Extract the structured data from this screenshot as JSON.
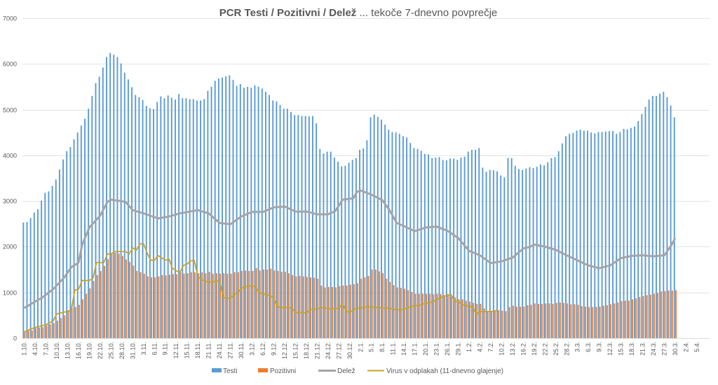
{
  "chart_data": {
    "type": "bar",
    "title": {
      "bold": "PCR Testi / Pozitivni / Delež",
      "rest": " ... tekoče 7-dnevno povprečje"
    },
    "xlabel": "",
    "ylabel": "",
    "ylim": [
      0,
      7000
    ],
    "yticks": [
      "0",
      "1000",
      "2000",
      "3000",
      "4000",
      "5000",
      "6000",
      "7000"
    ],
    "secondary_ylim": [
      0,
      70
    ],
    "secondary_axis_visible": false,
    "grid": true,
    "legend_position": "bottom",
    "start_date": "1.10.",
    "category_count": 190,
    "x_tick_labels": [
      "1.10.",
      "4.10.",
      "7.10.",
      "10.10.",
      "13.10.",
      "16.10.",
      "19.10.",
      "22.10.",
      "25.10.",
      "28.10.",
      "31.10.",
      "3.11.",
      "6.11.",
      "9.11.",
      "12.11.",
      "15.11.",
      "18.11.",
      "21.11.",
      "24.11.",
      "27.11.",
      "30.11.",
      "3.12.",
      "6.12.",
      "9.12.",
      "12.12.",
      "15.12.",
      "18.12.",
      "21.12.",
      "24.12.",
      "27.12.",
      "30.12.",
      "2.1.",
      "5.1.",
      "8.1.",
      "11.1.",
      "14.1.",
      "17.1.",
      "20.1.",
      "23.1.",
      "26.1.",
      "29.1.",
      "1.2.",
      "4.2.",
      "7.2.",
      "10.2.",
      "13.2.",
      "16.2.",
      "19.2.",
      "22.2.",
      "25.2.",
      "28.2.",
      "3.3.",
      "6.3.",
      "9.3.",
      "12.3.",
      "15.3.",
      "18.3.",
      "21.3.",
      "24.3.",
      "27.3.",
      "30.3.",
      "2.4.",
      "5.4."
    ],
    "series": [
      {
        "name": "Testi",
        "kind": "bar",
        "color": "#5b9bd5",
        "axis": "primary",
        "values": [
          2530,
          2540,
          2630,
          2750,
          2820,
          3010,
          3180,
          3210,
          3330,
          3470,
          3690,
          3910,
          4090,
          4180,
          4350,
          4500,
          4650,
          4800,
          5020,
          5300,
          5580,
          5720,
          5920,
          6150,
          6240,
          6200,
          6150,
          6010,
          5810,
          5660,
          5490,
          5320,
          5270,
          5210,
          5080,
          5030,
          5010,
          5170,
          5290,
          5250,
          5310,
          5260,
          5220,
          5340,
          5250,
          5250,
          5230,
          5230,
          5200,
          5200,
          5230,
          5410,
          5500,
          5630,
          5680,
          5700,
          5730,
          5750,
          5650,
          5520,
          5560,
          5480,
          5500,
          5480,
          5530,
          5500,
          5460,
          5390,
          5320,
          5200,
          5180,
          5100,
          5020,
          5020,
          4950,
          4880,
          4880,
          4860,
          4860,
          4850,
          4860,
          4700,
          4140,
          4040,
          4080,
          4080,
          3950,
          3860,
          3760,
          3770,
          3840,
          3900,
          3940,
          4120,
          4150,
          4330,
          4830,
          4890,
          4840,
          4780,
          4670,
          4560,
          4510,
          4500,
          4470,
          4420,
          4390,
          4270,
          4160,
          4140,
          4100,
          4030,
          4020,
          3940,
          3950,
          3960,
          3900,
          3890,
          3930,
          3930,
          3900,
          3950,
          3970,
          4080,
          4120,
          4120,
          4160,
          3730,
          3640,
          3680,
          3670,
          3650,
          3560,
          3520,
          3940,
          3940,
          3770,
          3700,
          3680,
          3710,
          3740,
          3720,
          3750,
          3800,
          3780,
          3850,
          3940,
          3960,
          4090,
          4260,
          4420,
          4470,
          4490,
          4540,
          4560,
          4540,
          4540,
          4500,
          4480,
          4510,
          4510,
          4520,
          4530,
          4530,
          4470,
          4510,
          4580,
          4570,
          4600,
          4630,
          4750,
          4900,
          5060,
          5220,
          5300,
          5300,
          5350,
          5390,
          5270,
          5090,
          4830
        ]
      },
      {
        "name": "Pozitivni",
        "kind": "bar",
        "color": "#ed7d31",
        "axis": "primary",
        "values": [
          150,
          160,
          170,
          220,
          230,
          240,
          280,
          300,
          330,
          380,
          440,
          500,
          610,
          660,
          680,
          730,
          850,
          970,
          1090,
          1250,
          1380,
          1470,
          1580,
          1730,
          1840,
          1870,
          1850,
          1800,
          1720,
          1670,
          1590,
          1470,
          1440,
          1410,
          1350,
          1330,
          1330,
          1350,
          1380,
          1370,
          1390,
          1400,
          1400,
          1440,
          1410,
          1420,
          1440,
          1440,
          1420,
          1440,
          1420,
          1450,
          1410,
          1420,
          1410,
          1420,
          1410,
          1410,
          1440,
          1440,
          1470,
          1480,
          1470,
          1470,
          1530,
          1480,
          1500,
          1500,
          1520,
          1480,
          1470,
          1450,
          1450,
          1420,
          1380,
          1350,
          1360,
          1350,
          1340,
          1330,
          1320,
          1300,
          1150,
          1110,
          1120,
          1120,
          1110,
          1140,
          1150,
          1150,
          1170,
          1180,
          1200,
          1300,
          1330,
          1360,
          1500,
          1500,
          1460,
          1420,
          1300,
          1230,
          1160,
          1110,
          1100,
          1080,
          1050,
          1010,
          970,
          970,
          970,
          970,
          970,
          960,
          970,
          960,
          940,
          960,
          910,
          890,
          850,
          850,
          820,
          800,
          770,
          750,
          750,
          650,
          580,
          580,
          600,
          610,
          600,
          590,
          680,
          710,
          690,
          690,
          690,
          720,
          730,
          760,
          750,
          750,
          760,
          760,
          750,
          770,
          780,
          770,
          760,
          740,
          740,
          730,
          700,
          690,
          680,
          680,
          680,
          690,
          710,
          720,
          740,
          760,
          780,
          810,
          820,
          820,
          850,
          870,
          900,
          920,
          940,
          950,
          970,
          990,
          1020,
          1030,
          1040,
          1040,
          1050
        ]
      },
      {
        "name": "Delež",
        "kind": "line",
        "color": "#a5a5a5",
        "axis": "secondary",
        "unit": "%",
        "points": [
          [
            "1.10.",
            6.6
          ],
          [
            "6.10.",
            8.9
          ],
          [
            "9.10.",
            10.7
          ],
          [
            "12.10.",
            13.2
          ],
          [
            "14.10.",
            15.5
          ],
          [
            "16.10.",
            16.5
          ],
          [
            "17.10.",
            20.4
          ],
          [
            "19.10.",
            24.2
          ],
          [
            "22.10.",
            26.8
          ],
          [
            "24.10.",
            29.8
          ],
          [
            "25.10.",
            30.3
          ],
          [
            "29.10.",
            29.8
          ],
          [
            "31.10.",
            28.0
          ],
          [
            "3.11.",
            27.3
          ],
          [
            "7.11.",
            26.2
          ],
          [
            "10.11.",
            26.6
          ],
          [
            "13.11.",
            27.3
          ],
          [
            "18.11.",
            28.0
          ],
          [
            "21.11.",
            27.3
          ],
          [
            "24.11.",
            25.2
          ],
          [
            "27.11.",
            24.9
          ],
          [
            "30.11.",
            26.6
          ],
          [
            "3.12.",
            27.6
          ],
          [
            "6.12.",
            27.6
          ],
          [
            "9.12.",
            28.6
          ],
          [
            "12.12.",
            28.8
          ],
          [
            "15.12.",
            27.7
          ],
          [
            "18.12.",
            27.7
          ],
          [
            "21.12.",
            27.1
          ],
          [
            "24.12.",
            27.1
          ],
          [
            "26.12.",
            27.8
          ],
          [
            "27.12.",
            29.0
          ],
          [
            "28.12.",
            30.3
          ],
          [
            "31.12.",
            30.6
          ],
          [
            "1.1.",
            32.0
          ],
          [
            "2.1.",
            32.3
          ],
          [
            "5.1.",
            31.4
          ],
          [
            "8.1.",
            30.2
          ],
          [
            "10.1.",
            28.0
          ],
          [
            "12.1.",
            25.2
          ],
          [
            "14.1.",
            24.5
          ],
          [
            "17.1.",
            23.4
          ],
          [
            "20.1.",
            24.2
          ],
          [
            "23.1.",
            24.4
          ],
          [
            "26.1.",
            23.5
          ],
          [
            "29.1.",
            21.9
          ],
          [
            "1.2.",
            19.1
          ],
          [
            "4.2.",
            18.1
          ],
          [
            "7.2.",
            16.4
          ],
          [
            "10.2.",
            16.8
          ],
          [
            "13.2.",
            17.6
          ],
          [
            "16.2.",
            19.6
          ],
          [
            "18.2.",
            20.0
          ],
          [
            "19.2.",
            20.5
          ],
          [
            "22.2.",
            20.0
          ],
          [
            "25.2.",
            19.3
          ],
          [
            "28.2.",
            18.1
          ],
          [
            "3.3.",
            17.0
          ],
          [
            "6.3.",
            15.9
          ],
          [
            "9.3.",
            15.3
          ],
          [
            "12.3.",
            15.9
          ],
          [
            "15.3.",
            17.5
          ],
          [
            "18.3.",
            18.0
          ],
          [
            "21.3.",
            18.1
          ],
          [
            "24.3.",
            17.9
          ],
          [
            "27.3.",
            18.1
          ],
          [
            "29.3.",
            20.4
          ],
          [
            "30.3.",
            21.9
          ]
        ]
      },
      {
        "name": "Virus v odplakah (11-dnevno glajenje)",
        "kind": "line",
        "color": "#c9a227",
        "axis": "primary",
        "points": [
          [
            "1.10.",
            138
          ],
          [
            "4.10.",
            235
          ],
          [
            "7.10.",
            291
          ],
          [
            "9.10.",
            378
          ],
          [
            "10.10.",
            531
          ],
          [
            "12.10.",
            567
          ],
          [
            "14.10.",
            607
          ],
          [
            "15.10.",
            1056
          ],
          [
            "16.10.",
            1066
          ],
          [
            "17.10.",
            1260
          ],
          [
            "19.10.",
            1260
          ],
          [
            "20.10.",
            1311
          ],
          [
            "21.10.",
            1653
          ],
          [
            "23.10.",
            1653
          ],
          [
            "24.10.",
            1842
          ],
          [
            "25.10.",
            1842
          ],
          [
            "26.10.",
            1893
          ],
          [
            "29.10.",
            1893
          ],
          [
            "30.10.",
            1842
          ],
          [
            "31.10.",
            1975
          ],
          [
            "1.11.",
            1924
          ],
          [
            "2.11.",
            2062
          ],
          [
            "3.11.",
            2062
          ],
          [
            "4.11.",
            1858
          ],
          [
            "5.11.",
            1704
          ],
          [
            "6.11.",
            1704
          ],
          [
            "7.11.",
            1806
          ],
          [
            "8.11.",
            1755
          ],
          [
            "9.11.",
            1704
          ],
          [
            "10.11.",
            1730
          ],
          [
            "11.11.",
            1526
          ],
          [
            "12.11.",
            1475
          ],
          [
            "13.11.",
            1434
          ],
          [
            "14.11.",
            1587
          ],
          [
            "15.11.",
            1618
          ],
          [
            "16.11.",
            1690
          ],
          [
            "17.11.",
            1704
          ],
          [
            "18.11.",
            1347
          ],
          [
            "19.11.",
            1281
          ],
          [
            "20.11.",
            1245
          ],
          [
            "21.11.",
            1230
          ],
          [
            "22.11.",
            1230
          ],
          [
            "23.11.",
            1245
          ],
          [
            "24.11.",
            1255
          ],
          [
            "25.11.",
            888
          ],
          [
            "26.11.",
            873
          ],
          [
            "27.11.",
            873
          ],
          [
            "28.11.",
            955
          ],
          [
            "29.11.",
            990
          ],
          [
            "30.11.",
            1092
          ],
          [
            "1.12.",
            1128
          ],
          [
            "2.12.",
            1143
          ],
          [
            "3.12.",
            1143
          ],
          [
            "4.12.",
            1117
          ],
          [
            "5.12.",
            990
          ],
          [
            "6.12.",
            975
          ],
          [
            "7.12.",
            939
          ],
          [
            "8.12.",
            939
          ],
          [
            "9.12.",
            873
          ],
          [
            "10.12.",
            684
          ],
          [
            "11.12.",
            669
          ],
          [
            "12.12.",
            669
          ],
          [
            "13.12.",
            669
          ],
          [
            "14.12.",
            658
          ],
          [
            "15.12.",
            556
          ],
          [
            "16.12.",
            556
          ],
          [
            "17.12.",
            567
          ],
          [
            "18.12.",
            541
          ],
          [
            "19.12.",
            618
          ],
          [
            "20.12.",
            633
          ],
          [
            "21.12.",
            633
          ],
          [
            "22.12.",
            669
          ],
          [
            "23.12.",
            669
          ],
          [
            "24.12.",
            643
          ],
          [
            "25.12.",
            643
          ],
          [
            "26.12.",
            648
          ],
          [
            "27.12.",
            648
          ],
          [
            "28.12.",
            760
          ],
          [
            "29.12.",
            582
          ],
          [
            "30.12.",
            567
          ],
          [
            "31.12.",
            618
          ],
          [
            "1.1.",
            658
          ],
          [
            "2.1.",
            658
          ],
          [
            "3.1.",
            669
          ],
          [
            "4.1.",
            684
          ],
          [
            "5.1.",
            684
          ],
          [
            "6.1.",
            669
          ],
          [
            "7.1.",
            669
          ],
          [
            "8.1.",
            658
          ],
          [
            "9.1.",
            658
          ],
          [
            "10.1.",
            658
          ],
          [
            "11.1.",
            633
          ],
          [
            "12.1.",
            622
          ],
          [
            "13.1.",
            622
          ],
          [
            "14.1.",
            622
          ],
          [
            "15.1.",
            669
          ],
          [
            "16.1.",
            690
          ],
          [
            "17.1.",
            710
          ],
          [
            "18.1.",
            710
          ],
          [
            "19.1.",
            735
          ],
          [
            "20.1.",
            760
          ],
          [
            "21.1.",
            786
          ],
          [
            "22.1.",
            786
          ],
          [
            "23.1.",
            852
          ],
          [
            "24.1.",
            873
          ],
          [
            "25.1.",
            914
          ],
          [
            "26.1.",
            939
          ],
          [
            "27.1.",
            955
          ],
          [
            "28.1.",
            811
          ],
          [
            "29.1.",
            801
          ],
          [
            "30.1.",
            735
          ],
          [
            "31.1.",
            720
          ],
          [
            "1.2.",
            694
          ],
          [
            "2.2.",
            684
          ],
          [
            "3.2.",
            516
          ],
          [
            "4.2.",
            582
          ],
          [
            "5.2.",
            582
          ],
          [
            "6.2.",
            582
          ],
          [
            "7.2.",
            582
          ],
          [
            "8.2.",
            592
          ],
          [
            "9.2.",
            618
          ]
        ]
      }
    ]
  }
}
